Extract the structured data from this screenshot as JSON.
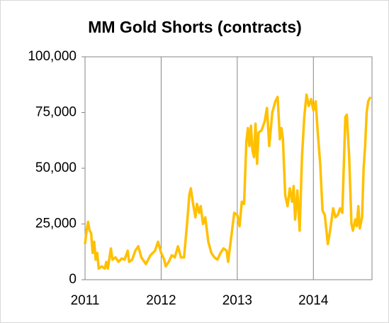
{
  "chart_data": {
    "type": "line",
    "title": "MM Gold Shorts (contracts)",
    "x": [
      2011.0,
      2011.02,
      2011.04,
      2011.06,
      2011.08,
      2011.1,
      2011.12,
      2011.14,
      2011.16,
      2011.18,
      2011.22,
      2011.26,
      2011.28,
      2011.3,
      2011.34,
      2011.36,
      2011.4,
      2011.44,
      2011.48,
      2011.52,
      2011.56,
      2011.58,
      2011.62,
      2011.66,
      2011.7,
      2011.74,
      2011.8,
      2011.86,
      2011.92,
      2011.96,
      2012.0,
      2012.04,
      2012.06,
      2012.1,
      2012.14,
      2012.18,
      2012.22,
      2012.26,
      2012.3,
      2012.34,
      2012.37,
      2012.39,
      2012.42,
      2012.45,
      2012.47,
      2012.5,
      2012.52,
      2012.55,
      2012.58,
      2012.62,
      2012.66,
      2012.7,
      2012.74,
      2012.78,
      2012.82,
      2012.86,
      2012.88,
      2012.92,
      2012.96,
      2013.0,
      2013.03,
      2013.06,
      2013.09,
      2013.12,
      2013.14,
      2013.16,
      2013.18,
      2013.2,
      2013.22,
      2013.24,
      2013.26,
      2013.28,
      2013.32,
      2013.36,
      2013.39,
      2013.42,
      2013.46,
      2013.5,
      2013.53,
      2013.56,
      2013.58,
      2013.6,
      2013.63,
      2013.66,
      2013.69,
      2013.72,
      2013.74,
      2013.76,
      2013.79,
      2013.82,
      2013.85,
      2013.88,
      2013.91,
      2013.94,
      2013.97,
      2014.0,
      2014.03,
      2014.06,
      2014.09,
      2014.12,
      2014.15,
      2014.19,
      2014.22,
      2014.26,
      2014.29,
      2014.32,
      2014.35,
      2014.38,
      2014.42,
      2014.44,
      2014.47,
      2014.5,
      2014.52,
      2014.55,
      2014.57,
      2014.59,
      2014.61,
      2014.64,
      2014.66,
      2014.68,
      2014.7,
      2014.72,
      2014.75
    ],
    "series": [
      {
        "name": "MM Gold Shorts",
        "color": "#ffc000",
        "values": [
          16000,
          22000,
          26000,
          22000,
          21000,
          12000,
          17000,
          9000,
          12000,
          5000,
          6000,
          5000,
          8000,
          5000,
          14000,
          9000,
          10000,
          8000,
          9500,
          9000,
          13000,
          8000,
          9000,
          13000,
          15000,
          10000,
          7000,
          11000,
          13000,
          17000,
          12000,
          9000,
          6000,
          8000,
          11000,
          10000,
          15000,
          10000,
          10000,
          25000,
          38000,
          41000,
          34000,
          28000,
          34000,
          30000,
          33000,
          25000,
          28000,
          17000,
          12000,
          10000,
          9000,
          12000,
          14000,
          13000,
          8000,
          19000,
          30000,
          29000,
          24000,
          35000,
          34000,
          62000,
          68000,
          60000,
          69000,
          58000,
          55000,
          70000,
          52000,
          66000,
          67000,
          71000,
          77000,
          60000,
          75000,
          80000,
          82000,
          63000,
          68000,
          63000,
          38000,
          33000,
          41000,
          35000,
          42000,
          27000,
          40000,
          22000,
          55000,
          73000,
          83000,
          78000,
          81000,
          76000,
          80000,
          65000,
          52000,
          31000,
          29000,
          16000,
          22000,
          32000,
          28000,
          29000,
          32000,
          30000,
          73000,
          74000,
          55000,
          25000,
          22000,
          27000,
          24000,
          33000,
          23000,
          28000,
          50000,
          60000,
          75000,
          80000,
          82000
        ]
      }
    ],
    "xlim": [
      2011,
      2014.77
    ],
    "xticks": [
      2011,
      2012,
      2013,
      2014
    ],
    "ylim": [
      0,
      100000
    ],
    "yticks": [
      0,
      {
        "value": 25000,
        "label": "25,000"
      },
      {
        "value": 50000,
        "label": "50,000"
      },
      {
        "value": 75000,
        "label": "75,000"
      },
      {
        "value": 100000,
        "label": "100,000"
      }
    ],
    "grid": "x"
  }
}
